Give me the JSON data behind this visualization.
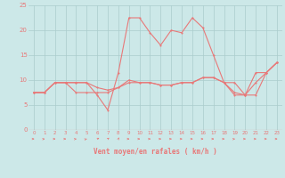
{
  "xlabel": "Vent moyen/en rafales ( km/h )",
  "background_color": "#cce8e8",
  "grid_color": "#aacccc",
  "line_color": "#e87878",
  "xlim": [
    -0.5,
    23.5
  ],
  "ylim": [
    0,
    25
  ],
  "yticks": [
    0,
    5,
    10,
    15,
    20,
    25
  ],
  "xticks": [
    0,
    1,
    2,
    3,
    4,
    5,
    6,
    7,
    8,
    9,
    10,
    11,
    12,
    13,
    14,
    15,
    16,
    17,
    18,
    19,
    20,
    21,
    22,
    23
  ],
  "line_rafales_y": [
    7.5,
    7.5,
    9.5,
    9.5,
    9.5,
    9.5,
    7.0,
    4.0,
    11.5,
    22.5,
    22.5,
    19.5,
    17.0,
    20.0,
    19.5,
    22.5,
    20.5,
    15.0,
    9.5,
    9.5,
    7.0,
    11.5,
    11.5,
    13.5
  ],
  "line_moyen_y": [
    7.5,
    7.5,
    9.5,
    9.5,
    7.5,
    7.5,
    7.5,
    7.5,
    8.5,
    9.5,
    9.5,
    9.5,
    9.0,
    9.0,
    9.5,
    9.5,
    10.5,
    10.5,
    9.5,
    7.0,
    7.0,
    9.5,
    11.5,
    13.5
  ],
  "line_mid_y": [
    7.5,
    7.5,
    9.5,
    9.5,
    9.5,
    9.5,
    8.5,
    8.0,
    8.5,
    10.0,
    9.5,
    9.5,
    9.0,
    9.0,
    9.5,
    9.5,
    10.5,
    10.5,
    9.5,
    7.5,
    7.0,
    7.0,
    11.5,
    13.5
  ],
  "arrow_angles_deg": [
    0,
    15,
    0,
    0,
    15,
    30,
    45,
    60,
    75,
    0,
    0,
    0,
    0,
    0,
    0,
    0,
    0,
    0,
    0,
    15,
    0,
    0,
    0,
    0
  ]
}
